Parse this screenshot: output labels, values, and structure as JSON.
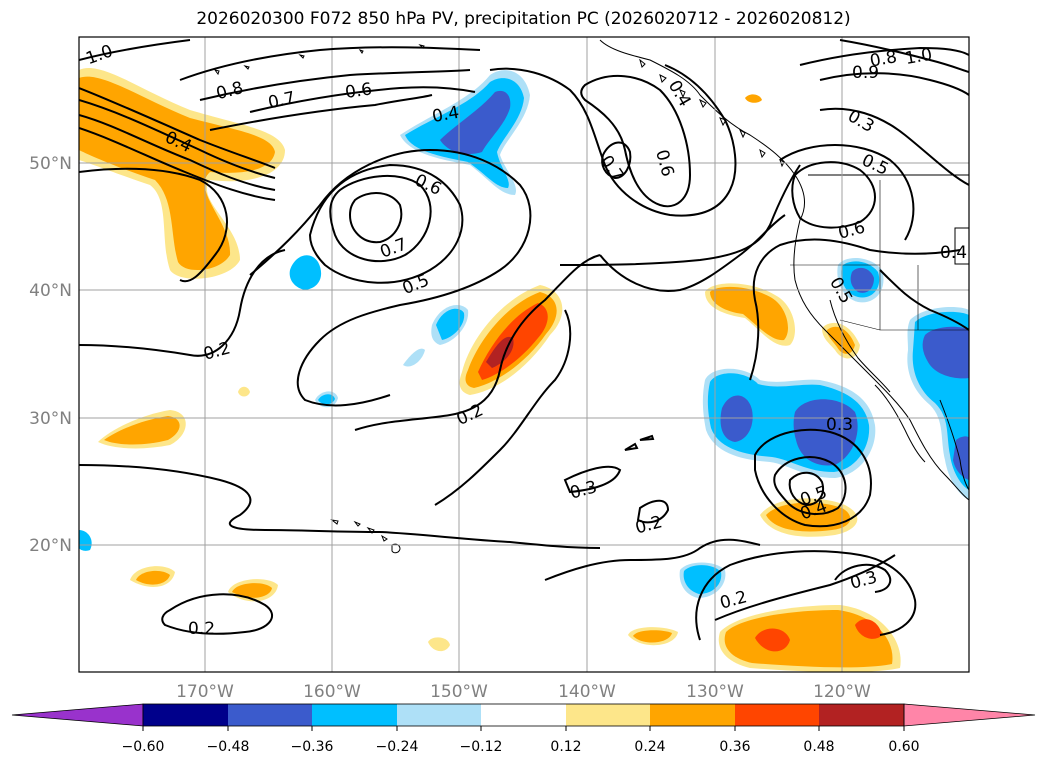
{
  "title": "2026020300 F072 850 hPa PV, precipitation PC (2026020712 - 2026020812)",
  "map": {
    "lon_labels": [
      "170°W",
      "160°W",
      "150°W",
      "140°W",
      "130°W",
      "120°W"
    ],
    "lat_labels": [
      "20°N",
      "30°N",
      "40°N",
      "50°N"
    ],
    "contour_labels": [
      "1.0",
      "0.8",
      "0.7",
      "0.6",
      "0.4",
      "0.4",
      "0.6",
      "0.7",
      "0.5",
      "0.2",
      "0.2",
      "0.3",
      "0.2",
      "0.2",
      "0.2",
      "0.4",
      "0.7",
      "0.6",
      "0.8",
      "1.0",
      "0.9",
      "0.3",
      "0.5",
      "0.6",
      "0.5",
      "0.3",
      "0.5",
      "0.4",
      "0.3",
      "0.4"
    ]
  },
  "colorbar": {
    "tick_labels": [
      "−0.60",
      "−0.48",
      "−0.36",
      "−0.24",
      "−0.12",
      "0.12",
      "0.24",
      "0.36",
      "0.48",
      "0.60"
    ],
    "colors": [
      "#9932cc",
      "#00008b",
      "#3b5bcc",
      "#00bfff",
      "#aee0f7",
      "#ffffff",
      "#fde68a",
      "#ffa500",
      "#ff4500",
      "#b22222",
      "#ff85a8"
    ]
  },
  "colors": {
    "contour": "#000000",
    "grid": "#a0a0a0",
    "coast": "#000000"
  }
}
